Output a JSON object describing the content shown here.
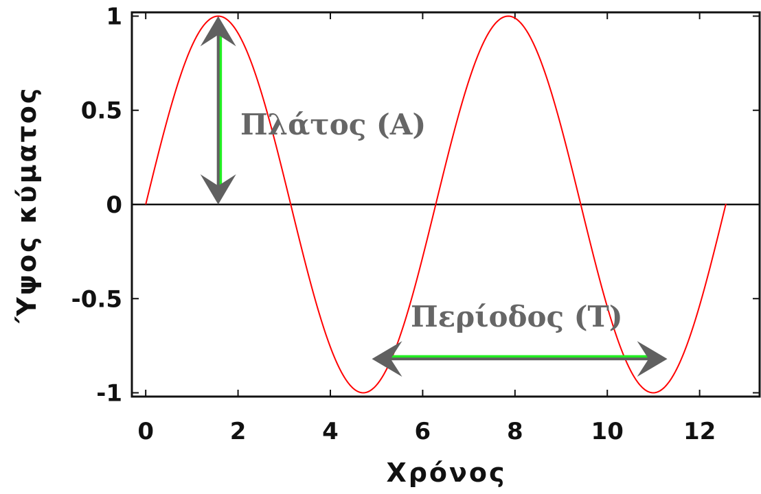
{
  "chart_data": {
    "type": "line",
    "title": "",
    "xlabel": "Χρόνος",
    "ylabel": "Ύψος κύματος",
    "xlim": [
      -0.3,
      13.3
    ],
    "ylim": [
      -1.02,
      1.02
    ],
    "xticks": [
      0,
      2,
      4,
      6,
      8,
      10,
      12
    ],
    "xtick_labels": [
      "0",
      "2",
      "4",
      "6",
      "8",
      "10",
      "12"
    ],
    "yticks": [
      1,
      0.5,
      0,
      -0.5,
      -1
    ],
    "ytick_labels": [
      "1",
      "0.5",
      "0",
      "-0.5",
      "-1"
    ],
    "grid": false,
    "series": [
      {
        "function": "sin(x)",
        "x_range": [
          0,
          12.57
        ],
        "color": "#ff0000"
      }
    ],
    "zero_line": true,
    "annotations": [
      {
        "id": "amplitude",
        "text": "Πλάτος (A)",
        "arrow": {
          "from": [
            1.57,
            1.0
          ],
          "to": [
            1.57,
            0.0
          ],
          "type": "double"
        }
      },
      {
        "id": "period",
        "text": "Περίοδος (Τ)",
        "arrow": {
          "from": [
            4.9,
            -0.82
          ],
          "to": [
            11.3,
            -0.82
          ],
          "type": "double"
        }
      }
    ],
    "colors": {
      "curve": "#ff0000",
      "arrow": "#606060",
      "arrow_highlight": "#22ee22",
      "axis": "#111111",
      "annotation_text": "#666666"
    }
  }
}
